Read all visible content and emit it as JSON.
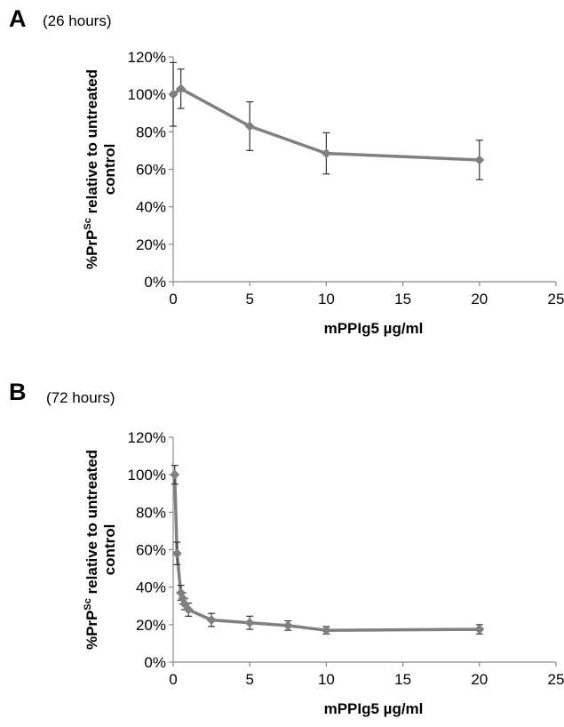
{
  "chart_data": [
    {
      "type": "line",
      "panel_label": "A",
      "subtitle": "(26 hours)",
      "xlabel": "mPPIg5 µg/ml",
      "ylabel_prefix": "%PrP",
      "ylabel_sup": "Sc",
      "ylabel_suffix": " relative to untreated",
      "ylabel_line2": "control",
      "xlim": [
        0,
        25
      ],
      "ylim": [
        0,
        120
      ],
      "x_ticks": [
        0,
        5,
        10,
        15,
        20,
        25
      ],
      "y_ticks": [
        0,
        20,
        40,
        60,
        80,
        100,
        120
      ],
      "x_tick_labels": [
        "0",
        "5",
        "10",
        "15",
        "20",
        "25"
      ],
      "y_tick_labels": [
        "0%",
        "20%",
        "40%",
        "60%",
        "80%",
        "100%",
        "120%"
      ],
      "grid": false,
      "color": "#808080",
      "series": [
        {
          "x": [
            0,
            0.5,
            5,
            10,
            20
          ],
          "y": [
            100,
            103,
            83,
            68.5,
            65
          ],
          "err": [
            17,
            10.5,
            13,
            11,
            10.5
          ]
        }
      ]
    },
    {
      "type": "line",
      "panel_label": "B",
      "subtitle": "(72 hours)",
      "xlabel": "mPPIg5 µg/ml",
      "ylabel_prefix": "%PrP",
      "ylabel_sup": "Sc",
      "ylabel_suffix": " relative to untreated",
      "ylabel_line2": "control",
      "xlim": [
        0,
        25
      ],
      "ylim": [
        0,
        120
      ],
      "x_ticks": [
        0,
        5,
        10,
        15,
        20,
        25
      ],
      "y_ticks": [
        0,
        20,
        40,
        60,
        80,
        100,
        120
      ],
      "x_tick_labels": [
        "0",
        "5",
        "10",
        "15",
        "20",
        "25"
      ],
      "y_tick_labels": [
        "0%",
        "20%",
        "40%",
        "60%",
        "80%",
        "100%",
        "120%"
      ],
      "grid": false,
      "color": "#808080",
      "series": [
        {
          "x": [
            0.1,
            0.25,
            0.5,
            0.63,
            0.75,
            1,
            2.5,
            5,
            7.5,
            10,
            20
          ],
          "y": [
            100,
            58,
            37,
            34,
            31,
            28,
            22.5,
            21,
            19.5,
            17,
            17.5
          ],
          "err": [
            5,
            6,
            4,
            3,
            3,
            3.5,
            3.5,
            3.5,
            2.5,
            2,
            2.5
          ]
        }
      ]
    }
  ]
}
